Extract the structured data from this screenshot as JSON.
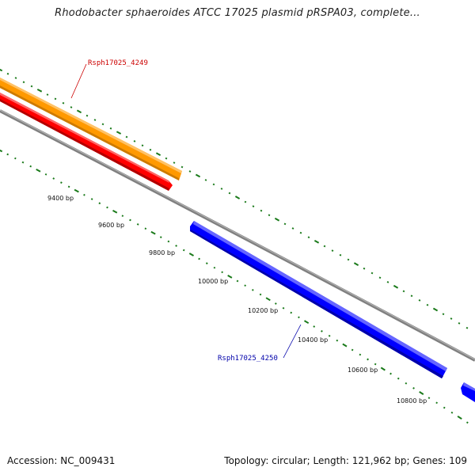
{
  "title": "Rhodobacter sphaeroides ATCC 17025 plasmid pRSPA03, complete...",
  "footer": {
    "accession": "Accession: NC_009431",
    "topology": "Topology: circular; Length: 121,962 bp; Genes: 109"
  },
  "colors": {
    "backbone": "#808080",
    "gene_orange": "#ff9900",
    "gene_red": "#ff0000",
    "gene_blue": "#0000ff",
    "label_red": "#cc0000",
    "label_blue": "#0000aa",
    "ticks": "#1a7a1a"
  },
  "genes": [
    {
      "id": "Rsph17025_4249",
      "label": "Rsph17025_4249"
    },
    {
      "id": "Rsph17025_4250",
      "label": "Rsph17025_4250"
    }
  ],
  "bp_labels": [
    "9400 bp",
    "9600 bp",
    "9800 bp",
    "10000 bp",
    "10200 bp",
    "10400 bp",
    "10600 bp",
    "10800 bp"
  ]
}
